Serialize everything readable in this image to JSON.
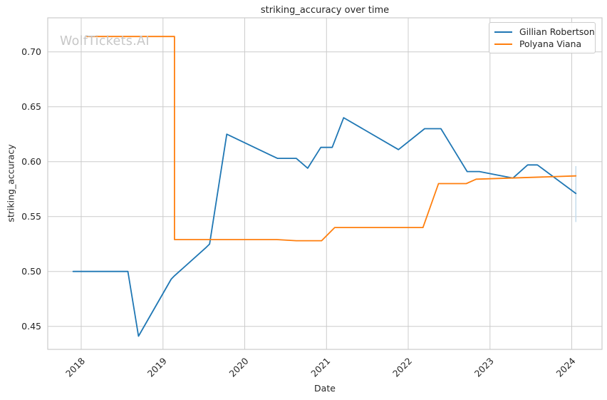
{
  "title": "striking_accuracy over time",
  "watermark": "WolfTickets.AI",
  "xlabel": "Date",
  "ylabel": "striking_accuracy",
  "legend": {
    "position": "upper right",
    "items": [
      {
        "label": "Gillian Robertson",
        "color": "#1f77b4"
      },
      {
        "label": "Polyana Viana",
        "color": "#ff7f0e"
      }
    ]
  },
  "colors": {
    "grid": "#cccccc",
    "text": "#262626",
    "watermark": "#c7c7c7",
    "background": "#ffffff",
    "series_blue": "#1f77b4",
    "series_orange": "#ff7f0e",
    "error_bar": "#c5dcec"
  },
  "chart_data": {
    "type": "line",
    "title": "striking_accuracy over time",
    "xlabel": "Date",
    "ylabel": "striking_accuracy",
    "grid": true,
    "legend_position": "upper right",
    "xlim": [
      2017.59,
      2024.37
    ],
    "ylim": [
      0.429,
      0.731
    ],
    "xticks": [
      2018,
      2019,
      2020,
      2021,
      2022,
      2023,
      2024
    ],
    "yticks": [
      0.45,
      0.5,
      0.55,
      0.6,
      0.65,
      0.7
    ],
    "x_unit": "year",
    "series": [
      {
        "name": "Gillian Robertson",
        "color": "#1f77b4",
        "points": [
          [
            2017.9,
            0.5
          ],
          [
            2018.57,
            0.5
          ],
          [
            2018.7,
            0.441
          ],
          [
            2019.1,
            0.493
          ],
          [
            2019.14,
            0.496
          ],
          [
            2019.53,
            0.522
          ],
          [
            2019.57,
            0.525
          ],
          [
            2019.78,
            0.625
          ],
          [
            2020.4,
            0.603
          ],
          [
            2020.63,
            0.603
          ],
          [
            2020.77,
            0.594
          ],
          [
            2020.93,
            0.613
          ],
          [
            2021.07,
            0.613
          ],
          [
            2021.21,
            0.64
          ],
          [
            2021.88,
            0.611
          ],
          [
            2022.2,
            0.63
          ],
          [
            2022.4,
            0.63
          ],
          [
            2022.72,
            0.591
          ],
          [
            2022.87,
            0.591
          ],
          [
            2023.28,
            0.585
          ],
          [
            2023.46,
            0.597
          ],
          [
            2023.58,
            0.597
          ],
          [
            2024.05,
            0.571
          ]
        ]
      },
      {
        "name": "Polyana Viana",
        "color": "#ff7f0e",
        "points": [
          [
            2018.07,
            0.714
          ],
          [
            2019.14,
            0.714
          ],
          [
            2019.14,
            0.529
          ],
          [
            2020.39,
            0.529
          ],
          [
            2020.63,
            0.528
          ],
          [
            2020.94,
            0.528
          ],
          [
            2021.1,
            0.54
          ],
          [
            2022.18,
            0.54
          ],
          [
            2022.37,
            0.58
          ],
          [
            2022.71,
            0.58
          ],
          [
            2022.83,
            0.584
          ],
          [
            2024.05,
            0.587
          ]
        ]
      }
    ],
    "endpoint_error_bar": {
      "series": "Gillian Robertson",
      "x": 2024.05,
      "y_low": 0.545,
      "y_high": 0.596,
      "color": "#c5dcec"
    }
  }
}
